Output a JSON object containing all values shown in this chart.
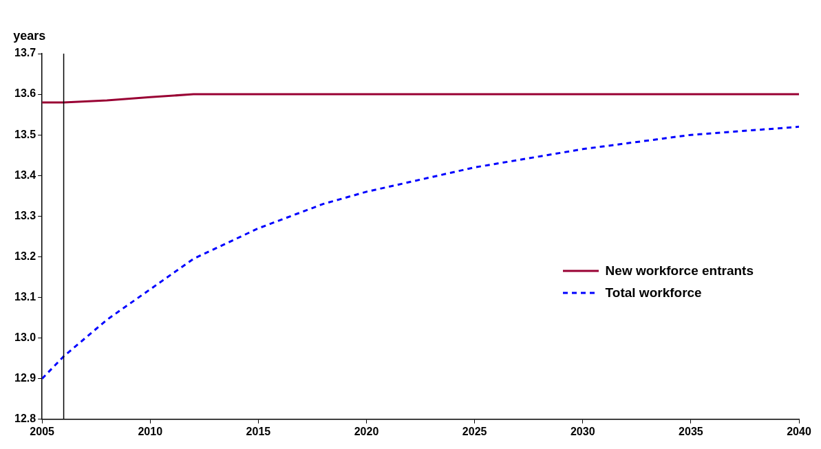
{
  "chart_data": {
    "type": "line",
    "ylabel": "years",
    "xlim": [
      2005,
      2040
    ],
    "xticks": [
      2005,
      2010,
      2015,
      2020,
      2025,
      2030,
      2035,
      2040
    ],
    "ylim": [
      12.8,
      13.7
    ],
    "yticks": [
      12.8,
      12.9,
      {
        "value": 13,
        "label": "13.0"
      },
      13.1,
      13.2,
      13.3,
      13.4,
      13.5,
      13.6,
      13.7
    ],
    "grid": false,
    "legend": "right",
    "marker": "none",
    "ref_lines": [
      {
        "axis": "x",
        "value": 2006,
        "color": "#000000"
      }
    ],
    "series": [
      {
        "name": "New workforce entrants",
        "color": "#990033",
        "line_style": "solid",
        "x": [
          2005,
          2006,
          2008,
          2010,
          2012,
          2015,
          2020,
          2025,
          2030,
          2035,
          2040
        ],
        "values": [
          13.58,
          13.58,
          13.585,
          13.593,
          13.6,
          13.6,
          13.6,
          13.6,
          13.6,
          13.6,
          13.6
        ]
      },
      {
        "name": "Total workforce",
        "color": "#0000ff",
        "line_style": "dashed",
        "x": [
          2005,
          2006,
          2008,
          2010,
          2012,
          2015,
          2018,
          2020,
          2025,
          2030,
          2035,
          2040
        ],
        "values": [
          12.9,
          12.955,
          13.045,
          13.12,
          13.195,
          13.27,
          13.33,
          13.36,
          13.42,
          13.465,
          13.5,
          13.52
        ]
      }
    ]
  }
}
